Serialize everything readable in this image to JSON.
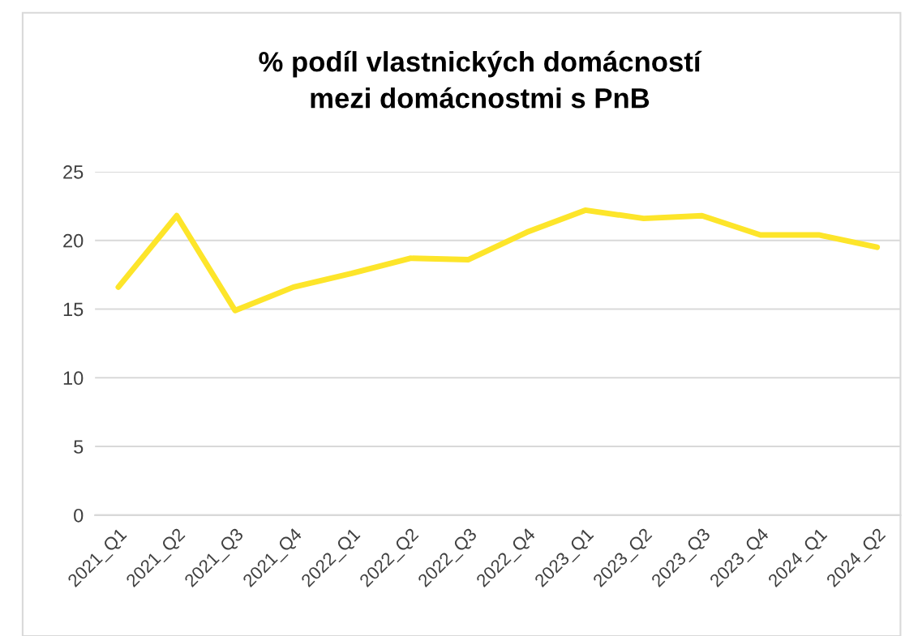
{
  "chart_data": {
    "type": "line",
    "title": "% podíl vlastnických domácností\nmezi domácnostmi s PnB",
    "categories": [
      "2021_Q1",
      "2021_Q2",
      "2021_Q3",
      "2021_Q4",
      "2022_Q1",
      "2022_Q2",
      "2022_Q3",
      "2022_Q4",
      "2023_Q1",
      "2023_Q2",
      "2023_Q3",
      "2023_Q4",
      "2024_Q1",
      "2024_Q2"
    ],
    "series": [
      {
        "color": "#fde52a",
        "values": [
          16.6,
          21.8,
          14.9,
          16.6,
          17.6,
          18.7,
          18.6,
          20.6,
          22.2,
          21.6,
          21.8,
          20.4,
          20.4,
          19.5
        ]
      }
    ],
    "ylim": [
      0,
      25
    ],
    "yticks": [
      0,
      5,
      10,
      15,
      20,
      25
    ],
    "grid": "y",
    "legend": false,
    "marker": "none",
    "line_style": "solid"
  }
}
